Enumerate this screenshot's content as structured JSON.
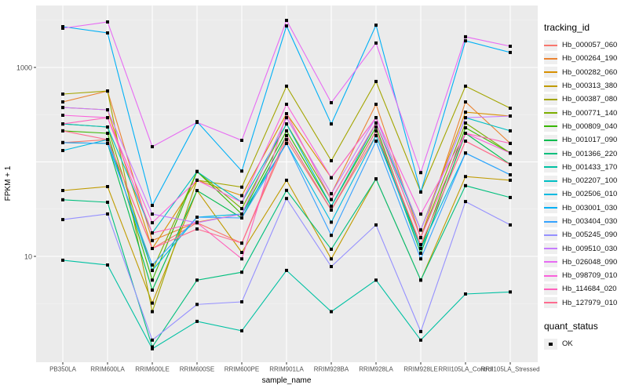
{
  "figure": {
    "y_axis": {
      "title": "FPKM + 1",
      "tick_top": "1000",
      "tick_bottom": "10"
    },
    "x_axis": {
      "title": "sample_name"
    },
    "legend": {
      "title": "tracking_id"
    },
    "quant_legend": {
      "title": "quant_status",
      "item": "OK"
    }
  },
  "chart_data": {
    "type": "line",
    "title": "",
    "xlabel": "sample_name",
    "ylabel": "FPKM + 1",
    "yscale": "log10",
    "ylim": [
      0.8,
      4500
    ],
    "y_major_gridlines": [
      10,
      100,
      1000
    ],
    "y_labeled_ticks": [
      1000,
      10
    ],
    "y_minor_gridlines": [
      3.162,
      31.62,
      316.2,
      3162
    ],
    "grid": true,
    "legend_position": "right",
    "point_marker": "black-square",
    "style": {
      "panel_bg": "#ebebeb",
      "gridline": "#ffffff",
      "axis_text": "#4d4d4d",
      "legend_key_bg": "#efefef"
    },
    "categories": [
      "PB350LA",
      "RRIM600LA",
      "RRIM600LE",
      "RRIM600SE",
      "RRIM600PE",
      "RRIM901LA",
      "RRIM928BA",
      "RRIM928LA",
      "RRIM928LE",
      "RRII105LA_Control",
      "RRII105LA_Stressed"
    ],
    "series": [
      {
        "name": "Hb_000057_060",
        "color": "#F8766D",
        "values": [
          160,
          172,
          12.1,
          22.7,
          13.8,
          172,
          31,
          190,
          13.3,
          166,
          94
        ]
      },
      {
        "name": "Hb_000264_190",
        "color": "#EA8331",
        "values": [
          431,
          563,
          14.7,
          23,
          28,
          294,
          46,
          407,
          15.8,
          431,
          157
        ]
      },
      {
        "name": "Hb_000282_060",
        "color": "#D89000",
        "values": [
          377,
          356,
          12.1,
          64,
          44,
          324,
          68,
          294,
          19,
          336,
          306
        ]
      },
      {
        "name": "Hb_000313_380",
        "color": "#C09B00",
        "values": [
          49.8,
          54.8,
          3.2,
          49.8,
          11,
          64,
          9.4,
          66,
          5.6,
          70,
          64
        ]
      },
      {
        "name": "Hb_000387_080",
        "color": "#A3A500",
        "values": [
          522,
          563,
          2.6,
          64,
          54,
          633,
          103,
          710,
          48,
          633,
          370
        ]
      },
      {
        "name": "Hb_000771_140",
        "color": "#7CAE00",
        "values": [
          252,
          234,
          7.1,
          79,
          32,
          252,
          40,
          258,
          15.8,
          258,
          124
        ]
      },
      {
        "name": "Hb_000809_040",
        "color": "#39B600",
        "values": [
          213,
          201,
          5.6,
          79,
          28,
          213,
          34,
          234,
          12.1,
          230,
          124
        ]
      },
      {
        "name": "Hb_001017_090",
        "color": "#00BB4E",
        "values": [
          160,
          157,
          4.4,
          49.8,
          25.5,
          190,
          31,
          213,
          10.8,
          201,
          94
        ]
      },
      {
        "name": "Hb_001366_220",
        "color": "#00BF7D",
        "values": [
          39.7,
          37.4,
          1.1,
          5.6,
          6.8,
          50,
          11.9,
          66,
          5.6,
          56,
          42
        ]
      },
      {
        "name": "Hb_001433_170",
        "color": "#00C1A3",
        "values": [
          9.1,
          8.1,
          1.05,
          2.05,
          1.63,
          7.1,
          2.6,
          5.6,
          1.3,
          4.0,
          4.2
        ]
      },
      {
        "name": "Hb_002207_100",
        "color": "#00BFC4",
        "values": [
          252,
          234,
          17.7,
          79,
          37.4,
          252,
          34,
          258,
          19,
          294,
          213
        ]
      },
      {
        "name": "Hb_002506_010",
        "color": "#00BAE0",
        "values": [
          132,
          172,
          7.1,
          26,
          28,
          157,
          23,
          190,
          12.1,
          124,
          73
        ]
      },
      {
        "name": "Hb_003001_030",
        "color": "#00B0F6",
        "values": [
          2700,
          2320,
          34.6,
          267,
          80,
          2750,
          252,
          2800,
          48,
          1910,
          1440
        ]
      },
      {
        "name": "Hb_003404_030",
        "color": "#35A2FF",
        "values": [
          160,
          157,
          8.1,
          26,
          25.5,
          157,
          16.7,
          166,
          9.4,
          124,
          73
        ]
      },
      {
        "name": "Hb_005245_090",
        "color": "#9590FF",
        "values": [
          24.5,
          28.1,
          1.3,
          3.1,
          3.3,
          41,
          7.8,
          21.5,
          1.6,
          38,
          21.5
        ]
      },
      {
        "name": "Hb_009510_030",
        "color": "#C77CFF",
        "values": [
          377,
          356,
          28,
          22.7,
          28,
          294,
          46,
          294,
          19,
          294,
          306
        ]
      },
      {
        "name": "Hb_026048_090",
        "color": "#E76BF3",
        "values": [
          2600,
          3030,
          145,
          262,
          169,
          3150,
          423,
          1810,
          77,
          2110,
          1675
        ]
      },
      {
        "name": "Hb_098709_010",
        "color": "#FA62DB",
        "values": [
          312,
          294,
          22.7,
          64,
          37.4,
          407,
          68,
          294,
          28,
          201,
          124
        ]
      },
      {
        "name": "Hb_114684_020",
        "color": "#FF62BC",
        "values": [
          252,
          294,
          17.7,
          22.7,
          9.4,
          324,
          40,
          258,
          15.8,
          201,
          157
        ]
      },
      {
        "name": "Hb_127979_010",
        "color": "#FF6C90",
        "values": [
          213,
          172,
          12.1,
          19.5,
          13.8,
          190,
          31,
          213,
          13.3,
          166,
          94
        ]
      }
    ]
  }
}
